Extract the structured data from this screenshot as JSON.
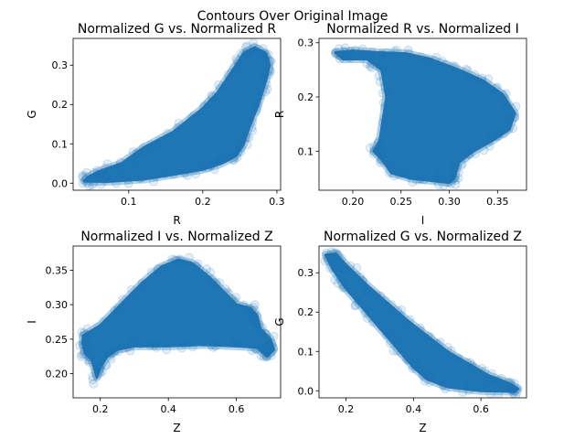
{
  "figure": {
    "suptitle": "Contours Over Original Image"
  },
  "style": {
    "point_color": "#1f77b4",
    "point_alpha": 0.12
  },
  "chart_data": [
    {
      "type": "scatter",
      "title": "Normalized G vs. Normalized R",
      "xlabel": "R",
      "ylabel": "G",
      "xlim": [
        0.025,
        0.305
      ],
      "ylim": [
        -0.018,
        0.368
      ],
      "xticks": [
        0.1,
        0.2,
        0.3
      ],
      "xtick_labels": [
        "0.1",
        "0.2",
        "0.3"
      ],
      "yticks": [
        0.0,
        0.1,
        0.2,
        0.3
      ],
      "ytick_labels": [
        "0.0",
        "0.1",
        "0.2",
        "0.3"
      ],
      "region": [
        [
          0.04,
          0.005
        ],
        [
          0.07,
          0.004
        ],
        [
          0.12,
          0.01
        ],
        [
          0.17,
          0.025
        ],
        [
          0.2,
          0.035
        ],
        [
          0.225,
          0.05
        ],
        [
          0.245,
          0.07
        ],
        [
          0.255,
          0.1
        ],
        [
          0.262,
          0.14
        ],
        [
          0.275,
          0.2
        ],
        [
          0.285,
          0.26
        ],
        [
          0.29,
          0.3
        ],
        [
          0.285,
          0.33
        ],
        [
          0.27,
          0.345
        ],
        [
          0.255,
          0.33
        ],
        [
          0.245,
          0.3
        ],
        [
          0.22,
          0.23
        ],
        [
          0.2,
          0.19
        ],
        [
          0.16,
          0.13
        ],
        [
          0.12,
          0.09
        ],
        [
          0.09,
          0.05
        ],
        [
          0.06,
          0.03
        ],
        [
          0.045,
          0.015
        ]
      ],
      "samples": [
        [
          0.05,
          0.01
        ],
        [
          0.07,
          0.02
        ],
        [
          0.09,
          0.03
        ],
        [
          0.11,
          0.05
        ],
        [
          0.13,
          0.07
        ],
        [
          0.15,
          0.09
        ],
        [
          0.17,
          0.11
        ],
        [
          0.19,
          0.14
        ],
        [
          0.21,
          0.17
        ],
        [
          0.23,
          0.21
        ],
        [
          0.25,
          0.25
        ],
        [
          0.27,
          0.3
        ],
        [
          0.28,
          0.32
        ],
        [
          0.26,
          0.33
        ],
        [
          0.12,
          0.09
        ],
        [
          0.24,
          0.06
        ],
        [
          0.2,
          0.04
        ],
        [
          0.29,
          0.29
        ]
      ]
    },
    {
      "type": "scatter",
      "title": "Normalized R vs. Normalized I",
      "xlabel": "I",
      "ylabel": "R",
      "xlim": [
        0.165,
        0.38
      ],
      "ylim": [
        0.028,
        0.308
      ],
      "xticks": [
        0.2,
        0.25,
        0.3,
        0.35
      ],
      "xtick_labels": [
        "0.20",
        "0.25",
        "0.30",
        "0.35"
      ],
      "yticks": [
        0.1,
        0.2,
        0.3
      ],
      "ytick_labels": [
        "0.1",
        "0.2",
        "0.3"
      ],
      "region": [
        [
          0.182,
          0.282
        ],
        [
          0.2,
          0.285
        ],
        [
          0.225,
          0.282
        ],
        [
          0.255,
          0.28
        ],
        [
          0.28,
          0.27
        ],
        [
          0.31,
          0.25
        ],
        [
          0.335,
          0.23
        ],
        [
          0.355,
          0.205
        ],
        [
          0.368,
          0.17
        ],
        [
          0.362,
          0.14
        ],
        [
          0.345,
          0.12
        ],
        [
          0.325,
          0.1
        ],
        [
          0.31,
          0.08
        ],
        [
          0.305,
          0.05
        ],
        [
          0.3,
          0.042
        ],
        [
          0.285,
          0.045
        ],
        [
          0.26,
          0.05
        ],
        [
          0.24,
          0.06
        ],
        [
          0.23,
          0.085
        ],
        [
          0.222,
          0.1
        ],
        [
          0.228,
          0.12
        ],
        [
          0.235,
          0.2
        ],
        [
          0.23,
          0.25
        ],
        [
          0.215,
          0.27
        ],
        [
          0.19,
          0.27
        ]
      ],
      "samples": [
        [
          0.25,
          0.22
        ],
        [
          0.28,
          0.18
        ],
        [
          0.31,
          0.15
        ],
        [
          0.34,
          0.17
        ],
        [
          0.27,
          0.1
        ],
        [
          0.29,
          0.06
        ],
        [
          0.24,
          0.07
        ],
        [
          0.2,
          0.28
        ],
        [
          0.36,
          0.16
        ],
        [
          0.23,
          0.27
        ],
        [
          0.32,
          0.23
        ],
        [
          0.26,
          0.14
        ]
      ]
    },
    {
      "type": "scatter",
      "title": "Normalized I vs. Normalized Z",
      "xlabel": "Z",
      "ylabel": "I",
      "xlim": [
        0.12,
        0.73
      ],
      "ylim": [
        0.165,
        0.385
      ],
      "xticks": [
        0.2,
        0.4,
        0.6
      ],
      "xtick_labels": [
        "0.2",
        "0.4",
        "0.6"
      ],
      "yticks": [
        0.2,
        0.25,
        0.3,
        0.35
      ],
      "ytick_labels": [
        "0.20",
        "0.25",
        "0.30",
        "0.35"
      ],
      "region": [
        [
          0.15,
          0.255
        ],
        [
          0.2,
          0.27
        ],
        [
          0.26,
          0.3
        ],
        [
          0.32,
          0.33
        ],
        [
          0.38,
          0.355
        ],
        [
          0.43,
          0.365
        ],
        [
          0.47,
          0.36
        ],
        [
          0.52,
          0.34
        ],
        [
          0.56,
          0.32
        ],
        [
          0.6,
          0.3
        ],
        [
          0.64,
          0.295
        ],
        [
          0.66,
          0.285
        ],
        [
          0.67,
          0.265
        ],
        [
          0.7,
          0.25
        ],
        [
          0.71,
          0.235
        ],
        [
          0.69,
          0.225
        ],
        [
          0.66,
          0.238
        ],
        [
          0.6,
          0.24
        ],
        [
          0.5,
          0.242
        ],
        [
          0.4,
          0.24
        ],
        [
          0.3,
          0.24
        ],
        [
          0.25,
          0.235
        ],
        [
          0.22,
          0.225
        ],
        [
          0.2,
          0.21
        ],
        [
          0.19,
          0.195
        ],
        [
          0.175,
          0.22
        ],
        [
          0.155,
          0.23
        ],
        [
          0.148,
          0.245
        ]
      ],
      "samples": [
        [
          0.18,
          0.185
        ],
        [
          0.2,
          0.21
        ],
        [
          0.25,
          0.27
        ],
        [
          0.35,
          0.3
        ],
        [
          0.43,
          0.36
        ],
        [
          0.5,
          0.33
        ],
        [
          0.58,
          0.3
        ],
        [
          0.65,
          0.28
        ],
        [
          0.69,
          0.24
        ],
        [
          0.3,
          0.25
        ],
        [
          0.4,
          0.26
        ],
        [
          0.55,
          0.26
        ]
      ]
    },
    {
      "type": "scatter",
      "title": "Normalized G vs. Normalized Z",
      "xlabel": "Z",
      "ylabel": "G",
      "xlim": [
        0.12,
        0.735
      ],
      "ylim": [
        -0.018,
        0.368
      ],
      "xticks": [
        0.2,
        0.4,
        0.6
      ],
      "xtick_labels": [
        "0.2",
        "0.4",
        "0.6"
      ],
      "yticks": [
        0.0,
        0.1,
        0.2,
        0.3
      ],
      "ytick_labels": [
        "0.0",
        "0.1",
        "0.2",
        "0.3"
      ],
      "region": [
        [
          0.14,
          0.345
        ],
        [
          0.17,
          0.348
        ],
        [
          0.2,
          0.32
        ],
        [
          0.26,
          0.27
        ],
        [
          0.32,
          0.225
        ],
        [
          0.38,
          0.18
        ],
        [
          0.44,
          0.14
        ],
        [
          0.5,
          0.1
        ],
        [
          0.56,
          0.07
        ],
        [
          0.62,
          0.04
        ],
        [
          0.68,
          0.02
        ],
        [
          0.71,
          0.005
        ],
        [
          0.7,
          -0.002
        ],
        [
          0.6,
          0.0
        ],
        [
          0.5,
          0.01
        ],
        [
          0.44,
          0.03
        ],
        [
          0.4,
          0.06
        ],
        [
          0.36,
          0.1
        ],
        [
          0.3,
          0.16
        ],
        [
          0.25,
          0.21
        ],
        [
          0.2,
          0.26
        ],
        [
          0.16,
          0.31
        ]
      ],
      "samples": [
        [
          0.15,
          0.34
        ],
        [
          0.2,
          0.31
        ],
        [
          0.26,
          0.25
        ],
        [
          0.32,
          0.2
        ],
        [
          0.38,
          0.14
        ],
        [
          0.44,
          0.09
        ],
        [
          0.5,
          0.05
        ],
        [
          0.56,
          0.03
        ],
        [
          0.62,
          0.02
        ],
        [
          0.68,
          0.01
        ],
        [
          0.45,
          0.04
        ],
        [
          0.36,
          0.12
        ]
      ]
    }
  ]
}
